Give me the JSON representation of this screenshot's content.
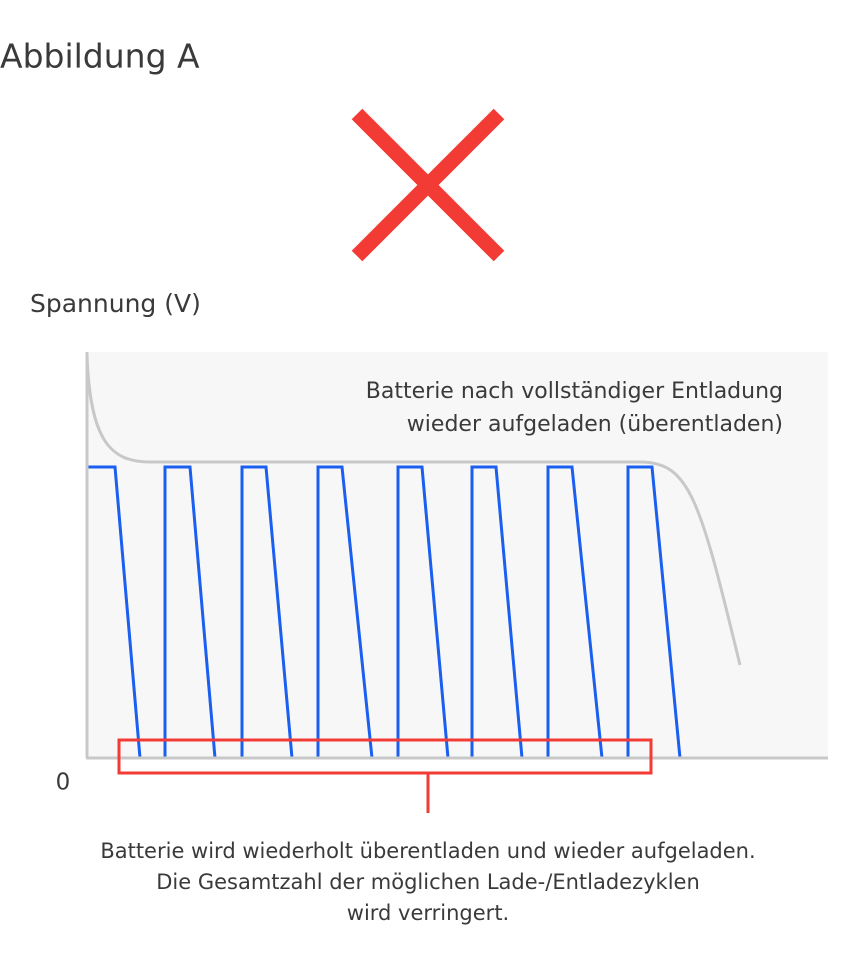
{
  "header": {
    "title": "Abbildung A"
  },
  "diagram": {
    "y_axis_label": "Spannung (V)",
    "origin_label": "0",
    "annotation": [
      "Batterie nach vollständiger Entladung",
      "wieder aufgeladen (überentladen)"
    ],
    "caption": [
      "Batterie wird wiederholt überentladen und wieder aufgeladen.",
      "Die Gesamtzahl der möglichen Lade-/Entladezyklen",
      "wird verringert."
    ]
  }
}
